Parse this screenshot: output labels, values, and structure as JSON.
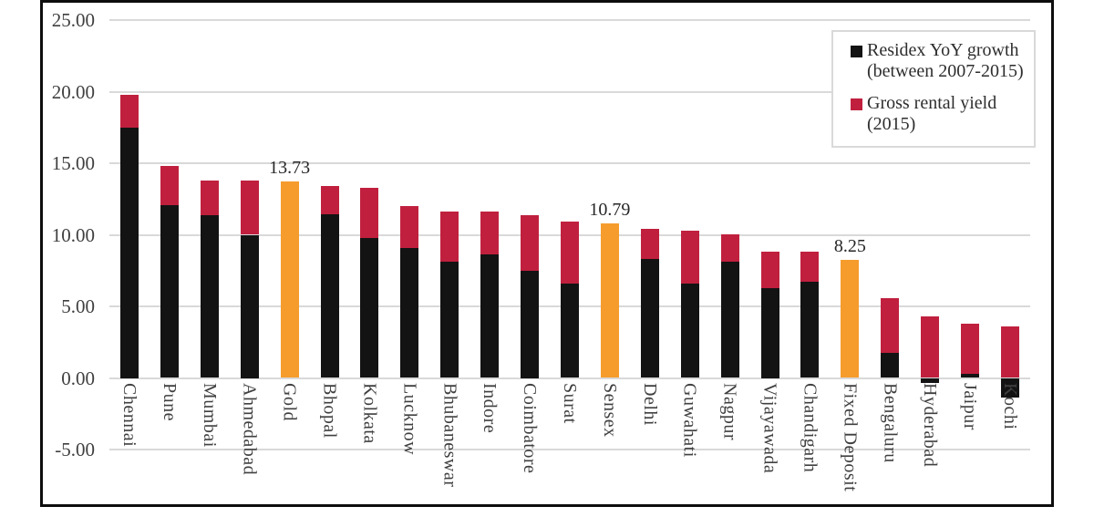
{
  "chart_data": {
    "type": "stacked-bar",
    "title": "",
    "grid": true,
    "legend_position": "top-right",
    "axis": {
      "ymin": -5,
      "ymax": 25,
      "tick_step": 5,
      "tick_labels": [
        "25.00",
        "20.00",
        "15.00",
        "10.00",
        "5.00",
        "0.00",
        "-5.00"
      ]
    },
    "categories": [
      "Chennai",
      "Pune",
      "Mumbai",
      "Ahmedabad",
      "Gold",
      "Bhopal",
      "Kolkata",
      "Lucknow",
      "Bhubaneswar",
      "Indore",
      "Coimbatore",
      "Surat",
      "Sensex",
      "Delhi",
      "Guwahati",
      "Nagpur",
      "Vijayawada",
      "Chandigarh",
      "Fixed Deposit",
      "Bengaluru",
      "Hyderabad",
      "Jaipur",
      "Kochi"
    ],
    "series": [
      {
        "name": "Residex YoY growth (between 2007-2015)",
        "color": "#131313",
        "values": [
          17.5,
          12.1,
          11.35,
          10.0,
          null,
          11.45,
          9.8,
          9.1,
          8.1,
          8.6,
          7.5,
          6.6,
          null,
          8.3,
          6.6,
          8.1,
          6.25,
          6.75,
          null,
          1.75,
          -0.35,
          0.3,
          -1.35
        ]
      },
      {
        "name": "Gross rental yield (2015)",
        "color": "#c0203e",
        "values": [
          2.3,
          2.7,
          2.45,
          3.8,
          null,
          1.95,
          3.5,
          2.9,
          3.5,
          3.0,
          3.9,
          4.35,
          null,
          2.1,
          3.7,
          1.95,
          2.6,
          2.05,
          null,
          3.85,
          4.3,
          3.5,
          3.6
        ]
      }
    ],
    "benchmarks": [
      {
        "index": 4,
        "category": "Gold",
        "value": 13.73,
        "label": "13.73"
      },
      {
        "index": 12,
        "category": "Sensex",
        "value": 10.79,
        "label": "10.79"
      },
      {
        "index": 18,
        "category": "Fixed Deposit",
        "value": 8.25,
        "label": "8.25"
      }
    ],
    "benchmark_color": "#f59c2d",
    "legend": [
      {
        "label": "Residex YoY growth (between 2007-2015)",
        "color": "#131313"
      },
      {
        "label": "Gross rental yield (2015)",
        "color": "#c0203e"
      }
    ],
    "colors": {
      "grid": "#d9d9d9",
      "axis_text": "#3f3f3f",
      "frame": "#0d0d0d"
    }
  }
}
